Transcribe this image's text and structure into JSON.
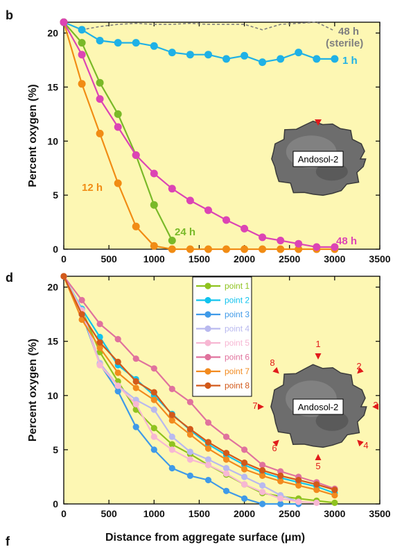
{
  "figure": {
    "panel_b_letter": "b",
    "panel_d_letter": "d",
    "panel_f_letter": "f",
    "aggregate_label": "Andosol-2",
    "direction_labels": [
      "1",
      "2",
      "3",
      "4",
      "5",
      "6",
      "7",
      "8"
    ]
  },
  "colors": {
    "sterile": "#7f7f7f",
    "h1": "#1fb1e6",
    "h12": "#f18c14",
    "h24": "#79b928",
    "h48": "#dc44b4",
    "point1": "#8fc31f",
    "point2": "#11c3ee",
    "point3": "#3f9ae8",
    "point4": "#b9b9ef",
    "point5": "#f7b7d3",
    "point6": "#e0729d",
    "point7": "#f28a1e",
    "point8": "#d2591a",
    "arrow": "#e11b1b",
    "plot_background": "#fdf7b3"
  },
  "chart_data": [
    {
      "panel": "b",
      "type": "line",
      "xlabel": "",
      "ylabel": "Percent oxygen (%)",
      "xlim": [
        0,
        3500
      ],
      "ylim": [
        0,
        21
      ],
      "xticks": [
        0,
        500,
        1000,
        1500,
        2000,
        2500,
        3000,
        3500
      ],
      "yticks": [
        0,
        5,
        10,
        15,
        20
      ],
      "grid": false,
      "series": [
        {
          "name": "48 h (sterile)",
          "label_lines": [
            "48 h",
            "(sterile)"
          ],
          "style": "dashed",
          "color_key": "sterile",
          "x": [
            0,
            200,
            400,
            600,
            800,
            1000,
            1200,
            1400,
            1600,
            1800,
            2000,
            2200,
            2400,
            2600,
            2800,
            3000
          ],
          "y": [
            21,
            20.3,
            20.6,
            20.8,
            20.9,
            20.8,
            20.8,
            20.9,
            20.8,
            20.8,
            20.8,
            20.3,
            20.8,
            20.9,
            21.0,
            20.2
          ]
        },
        {
          "name": "1 h",
          "label_lines": [
            "1 h"
          ],
          "style": "markers",
          "color_key": "h1",
          "x": [
            0,
            200,
            400,
            600,
            800,
            1000,
            1200,
            1400,
            1600,
            1800,
            2000,
            2200,
            2400,
            2600,
            2800,
            3000
          ],
          "y": [
            21,
            20.3,
            19.3,
            19.1,
            19.1,
            18.8,
            18.2,
            18.0,
            18.0,
            17.6,
            17.9,
            17.3,
            17.6,
            18.2,
            17.6,
            17.6
          ]
        },
        {
          "name": "12 h",
          "label_lines": [
            "12 h"
          ],
          "style": "markers",
          "color_key": "h12",
          "x": [
            0,
            200,
            400,
            600,
            800,
            1000,
            1200,
            1400,
            1600,
            1800,
            2000,
            2200,
            2400,
            2600,
            2800,
            3000
          ],
          "y": [
            21,
            15.3,
            10.7,
            6.1,
            2.1,
            0.3,
            0,
            0,
            0,
            0,
            0,
            0,
            0,
            0,
            0,
            0
          ]
        },
        {
          "name": "24 h",
          "label_lines": [
            "24 h"
          ],
          "style": "markers",
          "color_key": "h24",
          "x": [
            0,
            200,
            400,
            600,
            800,
            1000,
            1200
          ],
          "y": [
            21,
            19.1,
            15.4,
            12.5,
            8.7,
            4.1,
            0.8
          ]
        },
        {
          "name": "48 h",
          "label_lines": [
            "48 h"
          ],
          "style": "markers",
          "color_key": "h48",
          "x": [
            0,
            200,
            400,
            600,
            800,
            1000,
            1200,
            1400,
            1600,
            1800,
            2000,
            2200,
            2400,
            2600,
            2800,
            3000
          ],
          "y": [
            21,
            18.0,
            13.9,
            11.3,
            8.7,
            7.0,
            5.6,
            4.5,
            3.6,
            2.7,
            1.9,
            1.1,
            0.8,
            0.5,
            0.2,
            0.2
          ]
        }
      ]
    },
    {
      "panel": "d",
      "type": "line",
      "xlabel": "Distance from aggregate surface (μm)",
      "ylabel": "Percent oxygen (%)",
      "xlim": [
        0,
        3500
      ],
      "ylim": [
        0,
        21
      ],
      "xticks": [
        0,
        500,
        1000,
        1500,
        2000,
        2500,
        3000,
        3500
      ],
      "yticks": [
        0,
        5,
        10,
        15,
        20
      ],
      "grid": false,
      "legend": "top-center",
      "series": [
        {
          "name": "point 1",
          "color_key": "point1",
          "x": [
            0,
            200,
            400,
            600,
            800,
            1000,
            1200,
            1400,
            1600,
            1800,
            2000,
            2200,
            2400,
            2600,
            2800,
            3000
          ],
          "y": [
            21,
            17.9,
            14.0,
            11.3,
            8.7,
            7.0,
            5.5,
            4.6,
            3.6,
            2.7,
            1.8,
            1.0,
            0.7,
            0.5,
            0.3,
            0.1
          ]
        },
        {
          "name": "point 2",
          "color_key": "point2",
          "x": [
            0,
            200,
            400,
            600,
            800,
            1000,
            1200,
            1400,
            1600,
            1800,
            2000,
            2200,
            2400,
            2600,
            2800,
            3000
          ],
          "y": [
            21,
            18.0,
            15.4,
            12.8,
            11.5,
            10.0,
            8.3,
            6.8,
            5.5,
            4.5,
            3.6,
            2.9,
            2.4,
            2.0,
            1.6,
            1.0
          ]
        },
        {
          "name": "point 3",
          "color_key": "point3",
          "x": [
            0,
            200,
            400,
            600,
            800,
            1000,
            1200,
            1400,
            1600,
            1800,
            2000,
            2200,
            2400,
            2600
          ],
          "y": [
            21,
            17.5,
            12.9,
            10.4,
            7.1,
            5.0,
            3.3,
            2.6,
            2.2,
            1.2,
            0.5,
            0,
            0,
            0
          ]
        },
        {
          "name": "point 4",
          "color_key": "point4",
          "x": [
            0,
            200,
            400,
            600,
            800,
            1000,
            1200,
            1400,
            1600,
            1800,
            2000,
            2200,
            2400,
            2600
          ],
          "y": [
            21,
            17.9,
            13.0,
            10.9,
            9.6,
            8.7,
            6.2,
            4.8,
            4.1,
            3.3,
            2.5,
            1.7,
            0.8,
            0.2
          ]
        },
        {
          "name": "point 5",
          "color_key": "point5",
          "x": [
            0,
            200,
            400,
            600,
            800,
            1000,
            1200,
            1400,
            1600,
            1800,
            2000,
            2200,
            2400,
            2600,
            2800
          ],
          "y": [
            21,
            17.8,
            12.8,
            10.9,
            9.2,
            6.2,
            5.0,
            4.1,
            3.6,
            2.8,
            1.8,
            1.1,
            0.5,
            0.2,
            0.1
          ]
        },
        {
          "name": "point 6",
          "color_key": "point6",
          "x": [
            0,
            200,
            400,
            600,
            800,
            1000,
            1200,
            1400,
            1600,
            1800,
            2000,
            2200,
            2400,
            2600,
            2800,
            3000
          ],
          "y": [
            21,
            18.8,
            16.6,
            15.2,
            13.4,
            12.5,
            10.6,
            9.4,
            7.5,
            6.2,
            5.0,
            3.6,
            3.0,
            2.5,
            2.0,
            1.4
          ]
        },
        {
          "name": "point 7",
          "color_key": "point7",
          "x": [
            0,
            200,
            400,
            600,
            800,
            1000,
            1200,
            1400,
            1600,
            1800,
            2000,
            2200,
            2400,
            2600,
            2800,
            3000
          ],
          "y": [
            21,
            17.0,
            14.4,
            12.1,
            10.7,
            9.6,
            7.7,
            6.4,
            5.1,
            4.1,
            3.2,
            2.6,
            2.1,
            1.7,
            1.3,
            0.8
          ]
        },
        {
          "name": "point 8",
          "color_key": "point8",
          "x": [
            0,
            200,
            400,
            600,
            800,
            1000,
            1200,
            1400,
            1600,
            1800,
            2000,
            2200,
            2400,
            2600,
            2800,
            3000
          ],
          "y": [
            21,
            17.5,
            14.9,
            13.1,
            11.3,
            10.3,
            8.2,
            6.9,
            5.7,
            4.7,
            3.8,
            3.1,
            2.6,
            2.2,
            1.8,
            1.3
          ]
        }
      ]
    }
  ]
}
